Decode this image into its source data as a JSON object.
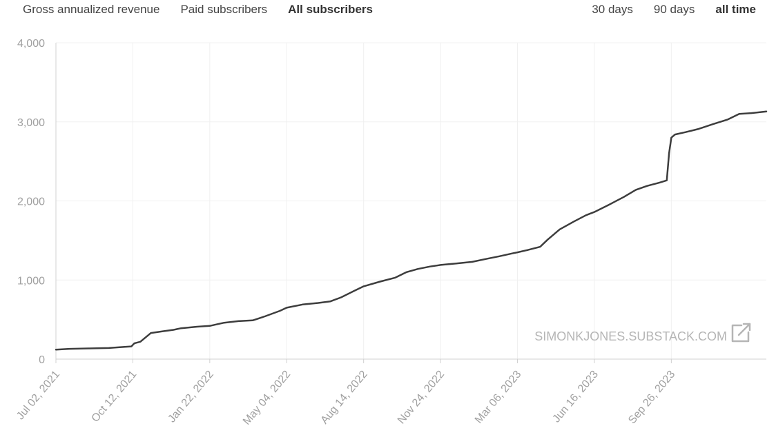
{
  "tabs": {
    "metrics": [
      {
        "label": "Gross annualized revenue",
        "active": false
      },
      {
        "label": "Paid subscribers",
        "active": false
      },
      {
        "label": "All subscribers",
        "active": true
      }
    ],
    "ranges": [
      {
        "label": "30 days",
        "active": false
      },
      {
        "label": "90 days",
        "active": false
      },
      {
        "label": "all time",
        "active": true
      }
    ]
  },
  "watermark": {
    "text": "SIMONKJONES.SUBSTACK.COM",
    "icon": "external-link-icon"
  },
  "colors": {
    "line": "#3d3d3d",
    "grid": "#f0f0f0",
    "axis": "#d0d0d0",
    "tick_text": "#a0a0a0",
    "watermark": "#b5b5b5"
  },
  "chart_data": {
    "type": "line",
    "title": "",
    "xlabel": "",
    "ylabel": "",
    "ylim": [
      0,
      4000
    ],
    "xlim": [
      "2021-07-02",
      "2024-01-30"
    ],
    "y_ticks": [
      0,
      1000,
      2000,
      3000,
      4000
    ],
    "y_tick_labels": [
      "0",
      "1,000",
      "2,000",
      "3,000",
      "4,000"
    ],
    "x_ticks": [
      "2021-07-02",
      "2021-10-12",
      "2022-01-22",
      "2022-05-04",
      "2022-08-14",
      "2022-11-24",
      "2023-03-06",
      "2023-06-16",
      "2023-09-26"
    ],
    "x_tick_labels": [
      "Jul 02, 2021",
      "Oct 12, 2021",
      "Jan 22, 2022",
      "May 04, 2022",
      "Aug 14, 2022",
      "Nov 24, 2022",
      "Mar 06, 2023",
      "Jun 16, 2023",
      "Sep 26, 2023"
    ],
    "grid": true,
    "series": [
      {
        "x": [
          "2021-07-02",
          "2021-07-20",
          "2021-08-15",
          "2021-09-10",
          "2021-10-01",
          "2021-10-10",
          "2021-10-14",
          "2021-10-22",
          "2021-11-05",
          "2021-11-20",
          "2021-12-05",
          "2021-12-15",
          "2022-01-05",
          "2022-01-22",
          "2022-02-10",
          "2022-03-01",
          "2022-03-20",
          "2022-04-05",
          "2022-04-25",
          "2022-05-04",
          "2022-05-25",
          "2022-06-15",
          "2022-07-01",
          "2022-07-15",
          "2022-08-01",
          "2022-08-14",
          "2022-09-05",
          "2022-09-25",
          "2022-10-10",
          "2022-10-25",
          "2022-11-10",
          "2022-11-24",
          "2022-12-15",
          "2023-01-05",
          "2023-01-25",
          "2023-02-10",
          "2023-03-01",
          "2023-03-06",
          "2023-03-20",
          "2023-04-05",
          "2023-04-15",
          "2023-05-01",
          "2023-05-20",
          "2023-06-05",
          "2023-06-16",
          "2023-07-05",
          "2023-07-25",
          "2023-08-10",
          "2023-08-25",
          "2023-09-10",
          "2023-09-20",
          "2023-09-23",
          "2023-09-26",
          "2023-10-01",
          "2023-10-15",
          "2023-11-01",
          "2023-11-20",
          "2023-12-10",
          "2023-12-25",
          "2024-01-10",
          "2024-01-30"
        ],
        "values": [
          120,
          130,
          135,
          140,
          155,
          160,
          200,
          220,
          330,
          350,
          370,
          390,
          410,
          420,
          460,
          480,
          490,
          540,
          610,
          650,
          690,
          710,
          730,
          780,
          860,
          920,
          980,
          1030,
          1100,
          1140,
          1170,
          1190,
          1210,
          1230,
          1270,
          1300,
          1340,
          1350,
          1380,
          1420,
          1510,
          1640,
          1740,
          1820,
          1860,
          1950,
          2050,
          2140,
          2190,
          2230,
          2260,
          2600,
          2800,
          2840,
          2870,
          2910,
          2970,
          3030,
          3100,
          3110,
          3130
        ]
      }
    ]
  }
}
